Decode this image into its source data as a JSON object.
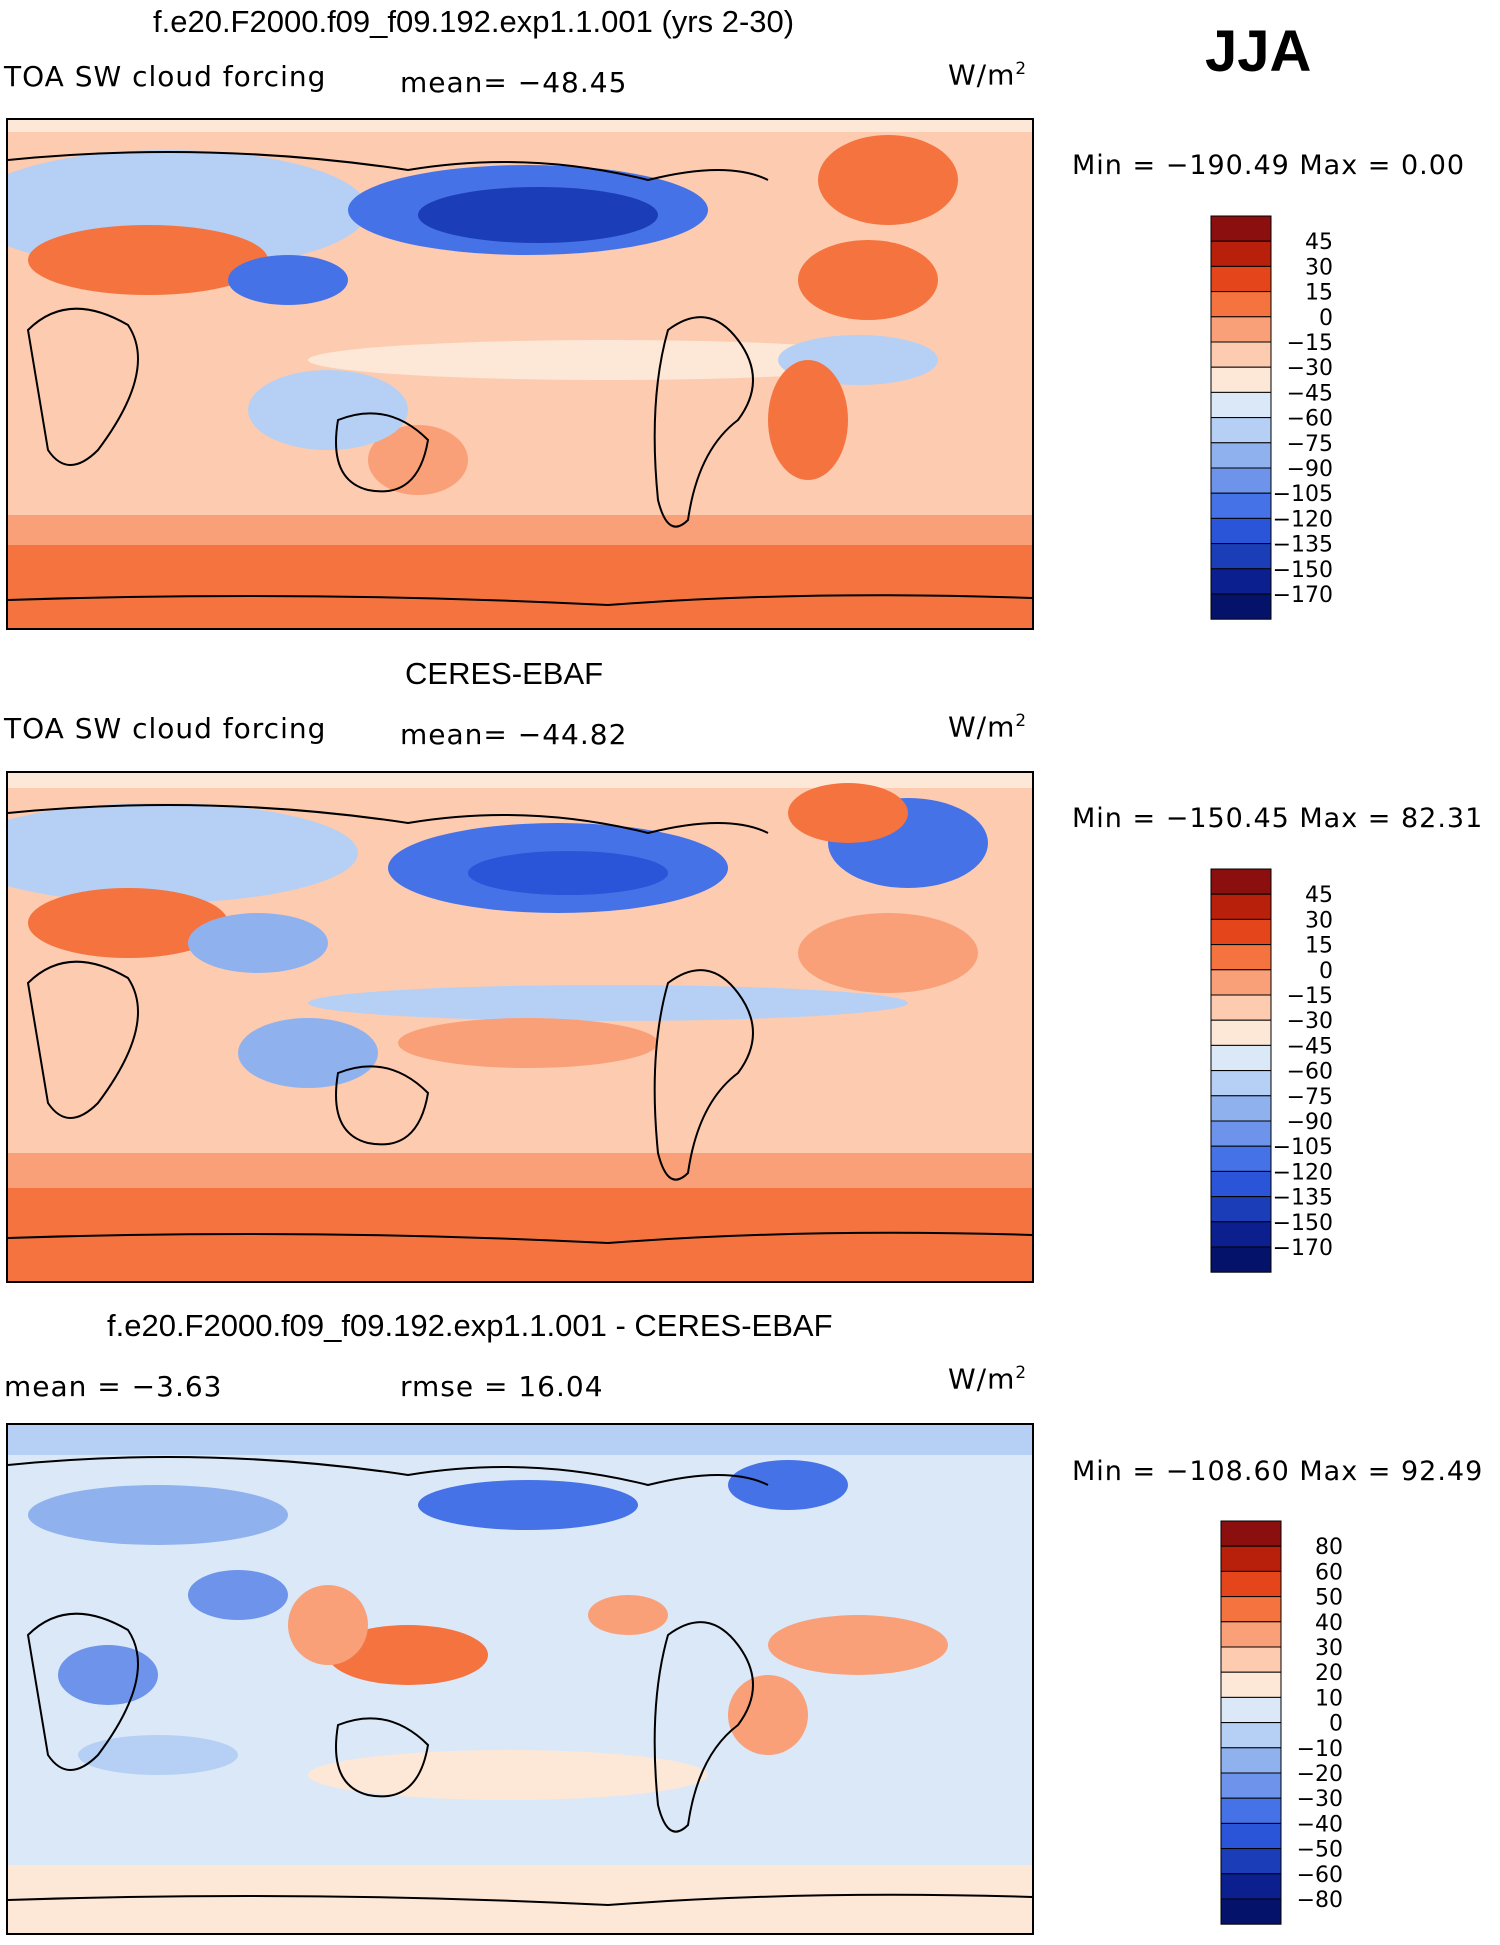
{
  "season": "JJA",
  "panels": [
    {
      "title": "f.e20.F2000.f09_f09.192.exp1.1.001 (yrs 2-30)",
      "left_label": "TOA SW cloud forcing",
      "mid_label": "mean= −48.45",
      "units": "W/m",
      "units_sup": "2",
      "min_max": "Min = −190.49 Max =   0.00",
      "levels": [
        "45",
        "30",
        "15",
        "0",
        "−15",
        "−30",
        "−45",
        "−60",
        "−75",
        "−90",
        "−105",
        "−120",
        "−135",
        "−150",
        "−170"
      ],
      "colors": [
        "#8b0f0f",
        "#b8200c",
        "#e4451a",
        "#f4733f",
        "#f9a078",
        "#fccbb0",
        "#fde7d6",
        "#dae8f8",
        "#b5d0f4",
        "#8fb2ee",
        "#6d93ea",
        "#4572e6",
        "#2a55d8",
        "#1c3db8",
        "#0b1f8e",
        "#05126a"
      ]
    },
    {
      "title": "CERES-EBAF",
      "left_label": "TOA SW cloud forcing",
      "mid_label": "mean= −44.82",
      "units": "W/m",
      "units_sup": "2",
      "min_max": "Min = −150.45 Max =  82.31",
      "levels": [
        "45",
        "30",
        "15",
        "0",
        "−15",
        "−30",
        "−45",
        "−60",
        "−75",
        "−90",
        "−105",
        "−120",
        "−135",
        "−150",
        "−170"
      ],
      "colors": [
        "#8b0f0f",
        "#b8200c",
        "#e4451a",
        "#f4733f",
        "#f9a078",
        "#fccbb0",
        "#fde7d6",
        "#dae8f8",
        "#b5d0f4",
        "#8fb2ee",
        "#6d93ea",
        "#4572e6",
        "#2a55d8",
        "#1c3db8",
        "#0b1f8e",
        "#05126a"
      ]
    },
    {
      "title": "f.e20.F2000.f09_f09.192.exp1.1.001 - CERES-EBAF",
      "left_label": "mean =   −3.63",
      "mid_label": "rmse =   16.04",
      "units": "W/m",
      "units_sup": "2",
      "min_max": "Min = −108.60 Max =  92.49",
      "levels": [
        "80",
        "60",
        "50",
        "40",
        "30",
        "20",
        "10",
        "0",
        "−10",
        "−20",
        "−30",
        "−40",
        "−50",
        "−60",
        "−80"
      ],
      "colors": [
        "#8b0f0f",
        "#b8200c",
        "#e4451a",
        "#f4733f",
        "#f9a078",
        "#fccbb0",
        "#fde7d6",
        "#dae8f8",
        "#b5d0f4",
        "#8fb2ee",
        "#6d93ea",
        "#4572e6",
        "#2a55d8",
        "#1c3db8",
        "#0b1f8e",
        "#05126a"
      ]
    }
  ]
}
